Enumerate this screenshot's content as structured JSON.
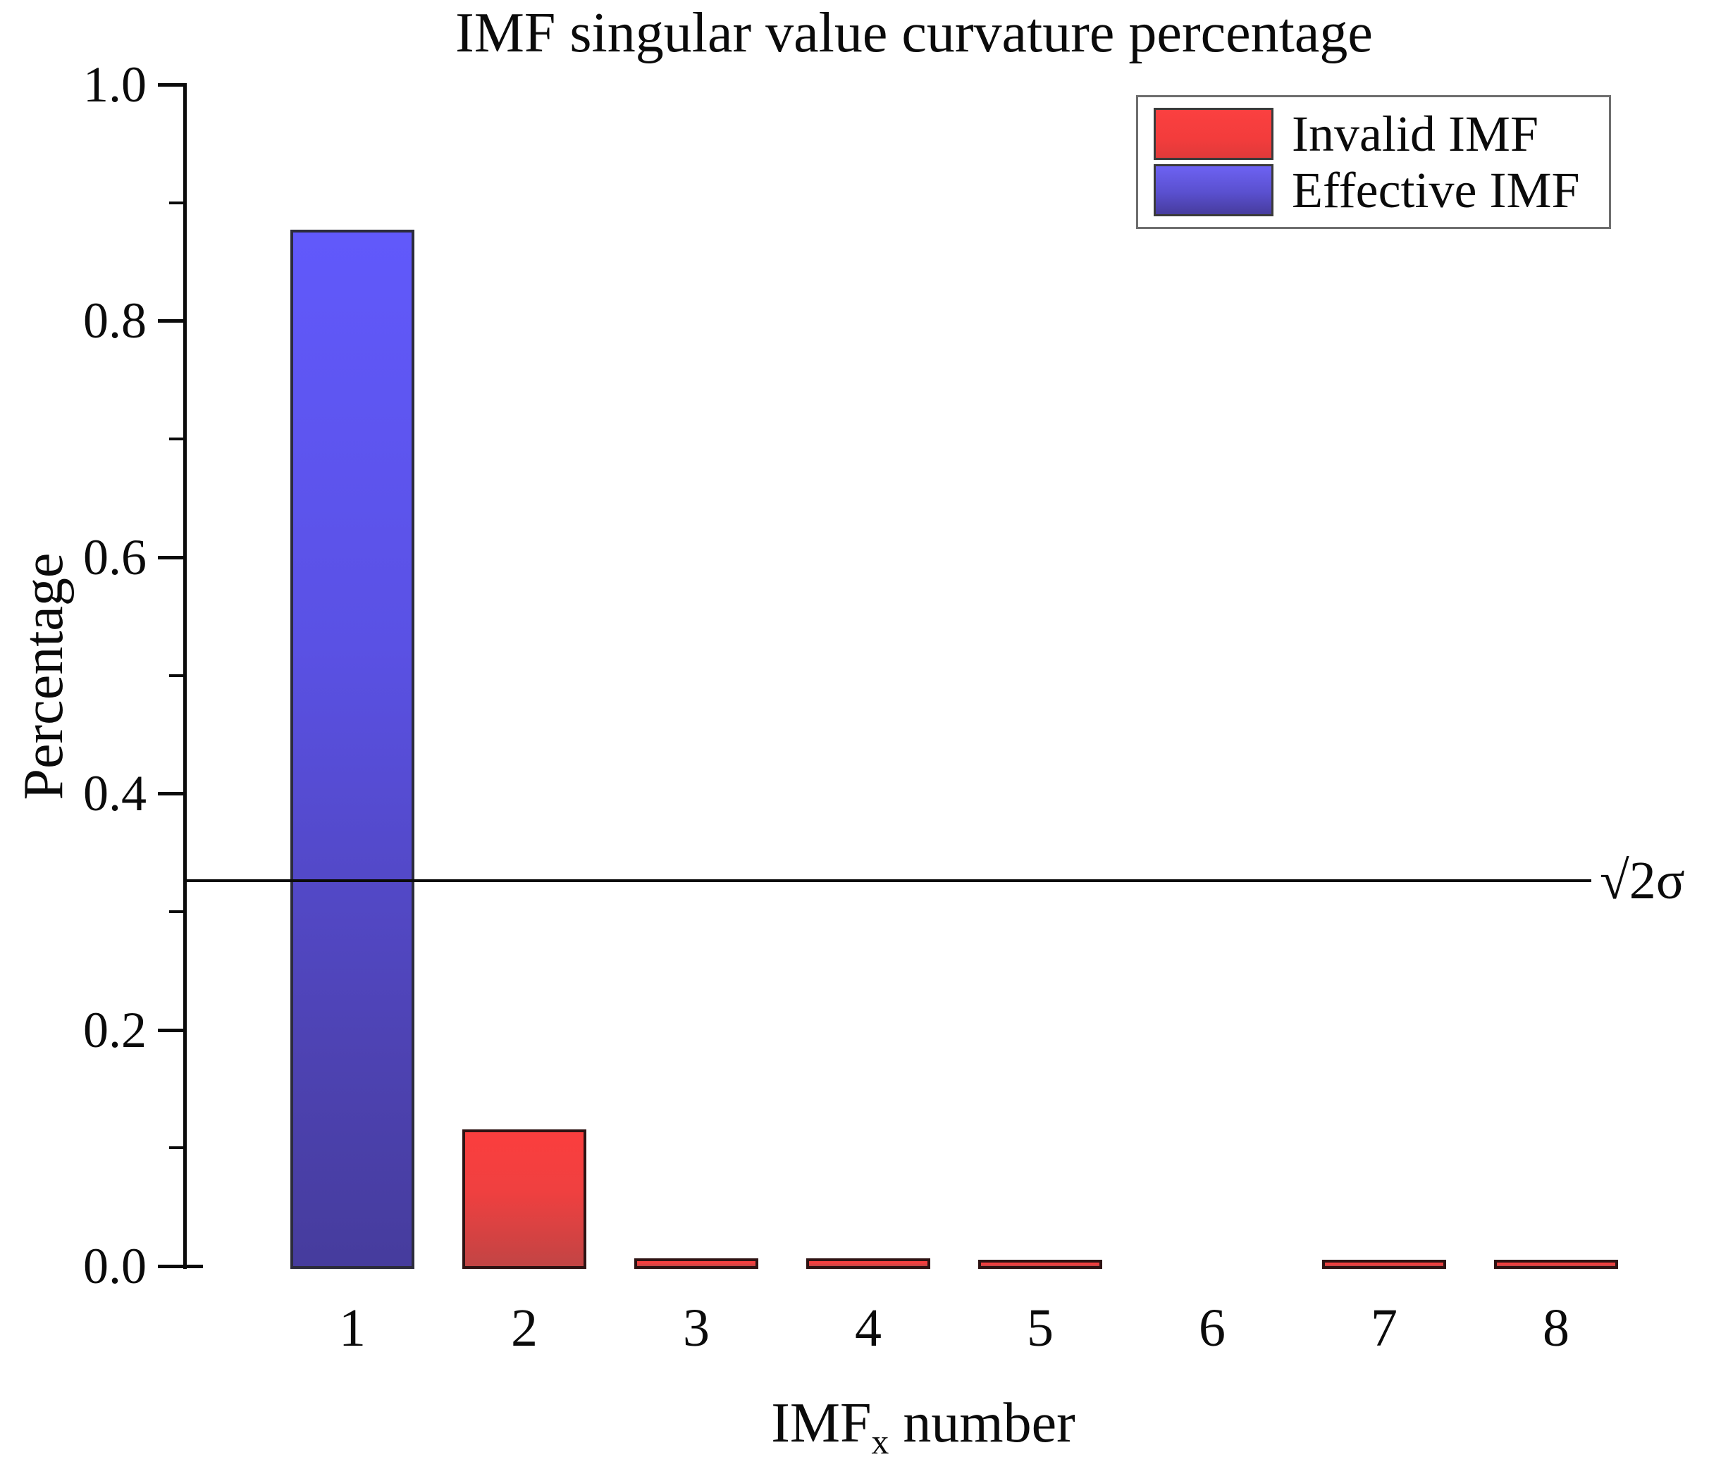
{
  "chart_data": {
    "type": "bar",
    "title": "IMF singular value curvature percentage",
    "categories": [
      "1",
      "2",
      "3",
      "4",
      "5",
      "6",
      "7",
      "8"
    ],
    "values": [
      0.875,
      0.113,
      0.004,
      0.004,
      0.003,
      0.0,
      0.003,
      0.003
    ],
    "bar_types": [
      "effective",
      "invalid",
      "invalid",
      "invalid",
      "invalid",
      "invalid",
      "invalid",
      "invalid"
    ],
    "xlabel": {
      "prefix": "IMF",
      "subscript": "x",
      "suffix": " number"
    },
    "ylabel": "Percentage",
    "ylim": [
      0,
      1
    ],
    "ytick_labels": [
      "0.0",
      "0.2",
      "0.4",
      "0.6",
      "0.8",
      "1.0"
    ],
    "ytick_values": [
      0.0,
      0.2,
      0.4,
      0.6,
      0.8,
      1.0
    ],
    "minor_ytick_values": [
      0.1,
      0.3,
      0.5,
      0.7,
      0.9
    ],
    "threshold_line": {
      "value": 0.326,
      "label": "√2σ"
    },
    "grid": false,
    "legend": {
      "position": "top-right",
      "items": [
        {
          "label": "Invalid IMF",
          "type": "invalid",
          "color": "#f83b3b"
        },
        {
          "label": "Effective IMF",
          "type": "effective",
          "color": "#5b52e0"
        }
      ]
    },
    "colors": {
      "effective_top": "#6159fb",
      "effective_bottom": "#463c9d",
      "invalid_top": "#fb3e3e",
      "invalid_bottom": "#c24444",
      "threshold": "#000000",
      "axis": "#0b0b0b"
    }
  }
}
